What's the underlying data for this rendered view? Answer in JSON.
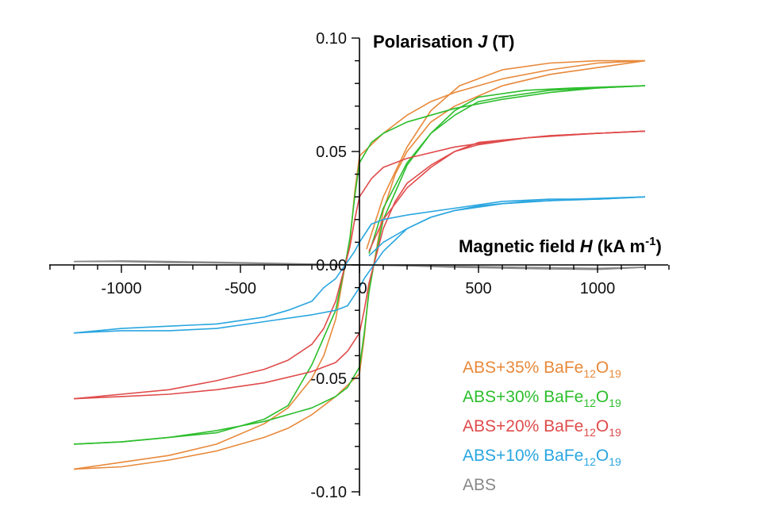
{
  "chart_data": {
    "type": "line",
    "title": "",
    "xlabel": {
      "text": "Magnetic field ",
      "var": "H",
      "unit_pre": " (kA m",
      "unit_sup": "-1",
      "unit_post": ")"
    },
    "ylabel": {
      "text": "Polarisation ",
      "var": "J",
      "unit": " (T)"
    },
    "xlim": [
      -1300,
      1300
    ],
    "ylim": [
      -0.1,
      0.1
    ],
    "x_ticks": [
      -1000,
      -500,
      0,
      500,
      1000
    ],
    "x_tick_labels": [
      "-1000",
      "-500",
      "0",
      "500",
      "1000"
    ],
    "y_ticks": [
      0.1,
      0.05,
      0.0,
      -0.05,
      -0.1
    ],
    "y_tick_labels": [
      "0.10",
      "0.05",
      "0.00",
      "-0.05",
      "-0.10"
    ],
    "grid": false,
    "legend_position": "bottom-right",
    "series": [
      {
        "name": "ABS+35% BaFe12O19",
        "label": {
          "base": "ABS+35% BaFe",
          "sub1": "12",
          "mid": "O",
          "sub2": "19"
        },
        "color": "#E8893A",
        "upper": [
          [
            1200,
            0.09
          ],
          [
            1000,
            0.089
          ],
          [
            800,
            0.086
          ],
          [
            600,
            0.082
          ],
          [
            400,
            0.076
          ],
          [
            300,
            0.072
          ],
          [
            200,
            0.066
          ],
          [
            100,
            0.058
          ],
          [
            50,
            0.053
          ],
          [
            0,
            0.048
          ],
          [
            -20,
            0.032
          ],
          [
            -40,
            0.01
          ],
          [
            -60,
            0.0
          ],
          [
            -80,
            -0.012
          ],
          [
            -100,
            -0.024
          ],
          [
            -150,
            -0.04
          ],
          [
            -200,
            -0.05
          ],
          [
            -300,
            -0.063
          ],
          [
            -400,
            -0.07
          ],
          [
            -600,
            -0.079
          ],
          [
            -800,
            -0.084
          ],
          [
            -1000,
            -0.087
          ],
          [
            -1200,
            -0.09
          ]
        ],
        "lower": [
          [
            -1200,
            -0.09
          ],
          [
            -1000,
            -0.089
          ],
          [
            -800,
            -0.086
          ],
          [
            -600,
            -0.082
          ],
          [
            -400,
            -0.076
          ],
          [
            -300,
            -0.072
          ],
          [
            -200,
            -0.066
          ],
          [
            -100,
            -0.058
          ],
          [
            -50,
            -0.053
          ],
          [
            0,
            -0.048
          ],
          [
            20,
            -0.032
          ],
          [
            40,
            -0.01
          ],
          [
            60,
            0.0
          ],
          [
            80,
            0.012
          ],
          [
            100,
            0.024
          ],
          [
            150,
            0.04
          ],
          [
            200,
            0.05
          ],
          [
            300,
            0.063
          ],
          [
            400,
            0.07
          ],
          [
            600,
            0.079
          ],
          [
            800,
            0.084
          ],
          [
            1000,
            0.087
          ],
          [
            1200,
            0.09
          ]
        ],
        "minor_loop": [
          [
            30,
            0.007
          ],
          [
            100,
            0.03
          ],
          [
            200,
            0.052
          ],
          [
            300,
            0.068
          ],
          [
            420,
            0.079
          ],
          [
            600,
            0.086
          ],
          [
            800,
            0.089
          ],
          [
            1000,
            0.09
          ],
          [
            1200,
            0.09
          ]
        ]
      },
      {
        "name": "ABS+30% BaFe12O19",
        "label": {
          "base": "ABS+30% BaFe",
          "sub1": "12",
          "mid": "O",
          "sub2": "19"
        },
        "color": "#2DBE2D",
        "upper": [
          [
            1200,
            0.079
          ],
          [
            1000,
            0.078
          ],
          [
            800,
            0.076
          ],
          [
            600,
            0.073
          ],
          [
            400,
            0.069
          ],
          [
            200,
            0.063
          ],
          [
            100,
            0.058
          ],
          [
            50,
            0.054
          ],
          [
            0,
            0.045
          ],
          [
            -20,
            0.03
          ],
          [
            -40,
            0.012
          ],
          [
            -60,
            0.0
          ],
          [
            -80,
            -0.01
          ],
          [
            -100,
            -0.02
          ],
          [
            -150,
            -0.032
          ],
          [
            -200,
            -0.044
          ],
          [
            -300,
            -0.062
          ],
          [
            -400,
            -0.068
          ],
          [
            -600,
            -0.074
          ],
          [
            -800,
            -0.076
          ],
          [
            -1000,
            -0.078
          ],
          [
            -1200,
            -0.079
          ]
        ],
        "lower": [
          [
            -1200,
            -0.079
          ],
          [
            -1000,
            -0.078
          ],
          [
            -800,
            -0.076
          ],
          [
            -600,
            -0.073
          ],
          [
            -400,
            -0.069
          ],
          [
            -200,
            -0.063
          ],
          [
            -100,
            -0.058
          ],
          [
            -50,
            -0.054
          ],
          [
            0,
            -0.045
          ],
          [
            20,
            -0.03
          ],
          [
            40,
            -0.012
          ],
          [
            60,
            0.0
          ],
          [
            80,
            0.01
          ],
          [
            100,
            0.02
          ],
          [
            150,
            0.032
          ],
          [
            200,
            0.044
          ],
          [
            300,
            0.058
          ],
          [
            400,
            0.066
          ],
          [
            500,
            0.072
          ],
          [
            600,
            0.074
          ],
          [
            800,
            0.077
          ],
          [
            1000,
            0.078
          ],
          [
            1200,
            0.079
          ]
        ],
        "minor_loop": [
          [
            40,
            0.005
          ],
          [
            100,
            0.025
          ],
          [
            200,
            0.045
          ],
          [
            300,
            0.058
          ],
          [
            400,
            0.068
          ],
          [
            500,
            0.074
          ],
          [
            700,
            0.077
          ],
          [
            900,
            0.078
          ],
          [
            1200,
            0.079
          ]
        ]
      },
      {
        "name": "ABS+20% BaFe12O19",
        "label": {
          "base": "ABS+20% BaFe",
          "sub1": "12",
          "mid": "O",
          "sub2": "19"
        },
        "color": "#E04B4B",
        "upper": [
          [
            1200,
            0.059
          ],
          [
            1000,
            0.058
          ],
          [
            800,
            0.057
          ],
          [
            600,
            0.055
          ],
          [
            400,
            0.052
          ],
          [
            200,
            0.047
          ],
          [
            100,
            0.043
          ],
          [
            50,
            0.038
          ],
          [
            0,
            0.03
          ],
          [
            -20,
            0.02
          ],
          [
            -40,
            0.008
          ],
          [
            -60,
            0.0
          ],
          [
            -80,
            -0.008
          ],
          [
            -100,
            -0.016
          ],
          [
            -150,
            -0.028
          ],
          [
            -200,
            -0.035
          ],
          [
            -300,
            -0.042
          ],
          [
            -400,
            -0.046
          ],
          [
            -600,
            -0.051
          ],
          [
            -800,
            -0.055
          ],
          [
            -1000,
            -0.057
          ],
          [
            -1200,
            -0.059
          ]
        ],
        "lower": [
          [
            -1200,
            -0.059
          ],
          [
            -1000,
            -0.058
          ],
          [
            -800,
            -0.057
          ],
          [
            -600,
            -0.055
          ],
          [
            -400,
            -0.052
          ],
          [
            -200,
            -0.047
          ],
          [
            -100,
            -0.043
          ],
          [
            -50,
            -0.038
          ],
          [
            0,
            -0.03
          ],
          [
            20,
            -0.02
          ],
          [
            40,
            -0.008
          ],
          [
            60,
            0.0
          ],
          [
            80,
            0.008
          ],
          [
            100,
            0.016
          ],
          [
            150,
            0.028
          ],
          [
            200,
            0.036
          ],
          [
            300,
            0.044
          ],
          [
            400,
            0.05
          ],
          [
            500,
            0.054
          ],
          [
            600,
            0.055
          ],
          [
            800,
            0.057
          ],
          [
            1000,
            0.058
          ],
          [
            1200,
            0.059
          ]
        ],
        "minor_loop": [
          [
            40,
            0.006
          ],
          [
            100,
            0.02
          ],
          [
            200,
            0.034
          ],
          [
            300,
            0.043
          ],
          [
            400,
            0.05
          ],
          [
            500,
            0.053
          ],
          [
            700,
            0.056
          ],
          [
            1000,
            0.058
          ],
          [
            1200,
            0.059
          ]
        ]
      },
      {
        "name": "ABS+10% BaFe12O19",
        "label": {
          "base": "ABS+10% BaFe",
          "sub1": "12",
          "mid": "O",
          "sub2": "19"
        },
        "color": "#2AA6E0",
        "upper": [
          [
            1200,
            0.03
          ],
          [
            1000,
            0.029
          ],
          [
            800,
            0.029
          ],
          [
            600,
            0.028
          ],
          [
            400,
            0.025
          ],
          [
            200,
            0.022
          ],
          [
            100,
            0.02
          ],
          [
            50,
            0.018
          ],
          [
            0,
            0.01
          ],
          [
            -20,
            0.006
          ],
          [
            -40,
            0.003
          ],
          [
            -60,
            0.0
          ],
          [
            -80,
            -0.003
          ],
          [
            -100,
            -0.006
          ],
          [
            -150,
            -0.01
          ],
          [
            -200,
            -0.016
          ],
          [
            -300,
            -0.02
          ],
          [
            -400,
            -0.023
          ],
          [
            -600,
            -0.026
          ],
          [
            -800,
            -0.027
          ],
          [
            -1000,
            -0.028
          ],
          [
            -1200,
            -0.03
          ]
        ],
        "lower": [
          [
            -1200,
            -0.03
          ],
          [
            -1000,
            -0.029
          ],
          [
            -800,
            -0.029
          ],
          [
            -600,
            -0.028
          ],
          [
            -400,
            -0.025
          ],
          [
            -200,
            -0.022
          ],
          [
            -100,
            -0.02
          ],
          [
            -50,
            -0.018
          ],
          [
            0,
            -0.01
          ],
          [
            20,
            -0.006
          ],
          [
            40,
            -0.003
          ],
          [
            60,
            0.0
          ],
          [
            80,
            0.003
          ],
          [
            100,
            0.006
          ],
          [
            150,
            0.011
          ],
          [
            200,
            0.016
          ],
          [
            300,
            0.021
          ],
          [
            400,
            0.024
          ],
          [
            500,
            0.026
          ],
          [
            700,
            0.028
          ],
          [
            1000,
            0.029
          ],
          [
            1200,
            0.03
          ]
        ],
        "minor_loop": [
          [
            40,
            0.004
          ],
          [
            100,
            0.01
          ],
          [
            200,
            0.016
          ],
          [
            300,
            0.021
          ],
          [
            400,
            0.024
          ],
          [
            600,
            0.027
          ],
          [
            900,
            0.029
          ],
          [
            1200,
            0.03
          ]
        ]
      },
      {
        "name": "ABS",
        "label": {
          "base": "ABS",
          "sub1": "",
          "mid": "",
          "sub2": ""
        },
        "color": "#888888",
        "upper": [
          [
            -1200,
            0.0015
          ],
          [
            -1000,
            0.0018
          ],
          [
            -800,
            0.0015
          ],
          [
            -600,
            0.0012
          ],
          [
            -400,
            0.0008
          ],
          [
            -200,
            0.0004
          ],
          [
            0,
            0.0
          ],
          [
            200,
            -0.0003
          ],
          [
            400,
            -0.0006
          ],
          [
            600,
            -0.0009
          ],
          [
            800,
            -0.0012
          ],
          [
            1000,
            -0.0015
          ],
          [
            1200,
            -0.001
          ]
        ],
        "lower": [
          [
            1200,
            -0.001
          ],
          [
            1000,
            -0.002
          ],
          [
            800,
            -0.0018
          ],
          [
            600,
            -0.0014
          ],
          [
            400,
            -0.001
          ],
          [
            200,
            -0.0004
          ],
          [
            0,
            0.0
          ],
          [
            -200,
            0.0003
          ],
          [
            -400,
            0.0006
          ],
          [
            -600,
            0.0009
          ],
          [
            -800,
            0.0011
          ],
          [
            -1000,
            0.0015
          ],
          [
            -1200,
            0.0015
          ]
        ],
        "minor_loop": []
      }
    ]
  }
}
